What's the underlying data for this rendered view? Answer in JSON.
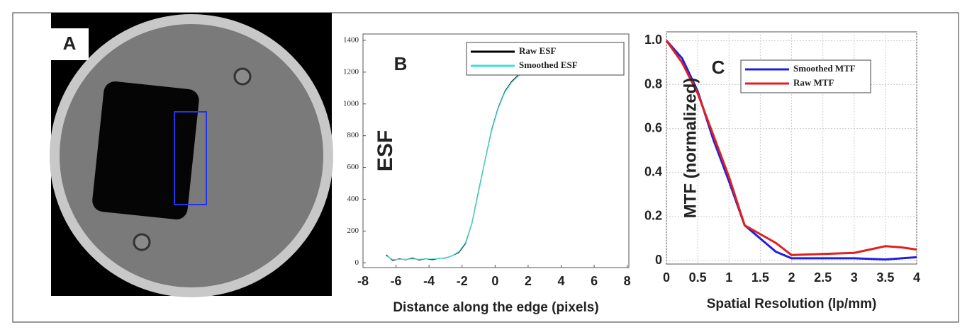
{
  "panel_a": {
    "label": "A"
  },
  "chart_data": [
    {
      "type": "line",
      "panel_label": "B",
      "x_label": "Distance along the edge (pixels)",
      "y_label": "ESF",
      "xlim": [
        -8,
        8.1
      ],
      "ylim": [
        -30,
        1440
      ],
      "xticks": [
        -8,
        -6,
        -4,
        -2,
        0,
        2,
        4,
        6,
        8
      ],
      "yticks": [
        0,
        200,
        400,
        600,
        800,
        1000,
        1200,
        1400
      ],
      "grid": false,
      "legend": "upper right",
      "series": [
        {
          "name": "Raw ESF",
          "color": "#000000",
          "x": [
            -6.6,
            -6.2,
            -5.8,
            -5.4,
            -5,
            -4.6,
            -4.2,
            -3.8,
            -3.4,
            -3,
            -2.6,
            -2.2,
            -1.8,
            -1.4,
            -1,
            -0.6,
            -0.2,
            0.2,
            0.6,
            1,
            1.4,
            1.8
          ],
          "values": [
            50,
            15,
            25,
            20,
            30,
            18,
            25,
            20,
            28,
            30,
            45,
            65,
            120,
            250,
            450,
            650,
            840,
            980,
            1080,
            1140,
            1180,
            1210
          ]
        },
        {
          "name": "Smoothed ESF",
          "color": "#40e0d0",
          "x": [
            -6.6,
            -6.2,
            -5.8,
            -5.4,
            -5,
            -4.6,
            -4.2,
            -3.8,
            -3.4,
            -3,
            -2.6,
            -2.2,
            -1.8,
            -1.4,
            -1,
            -0.6,
            -0.2,
            0.2,
            0.6,
            1,
            1.4,
            1.8
          ],
          "values": [
            45,
            20,
            22,
            22,
            25,
            22,
            24,
            24,
            27,
            32,
            45,
            70,
            125,
            250,
            445,
            650,
            835,
            975,
            1075,
            1135,
            1175,
            1205
          ]
        }
      ]
    },
    {
      "type": "line",
      "panel_label": "C",
      "x_label": "Spatial Resolution (lp/mm)",
      "y_label": "MTF (normalized)",
      "xlim": [
        0,
        4
      ],
      "ylim": [
        -0.016,
        1.04
      ],
      "xticks": [
        0,
        0.5,
        1,
        1.5,
        2,
        2.5,
        3,
        3.5,
        4
      ],
      "yticks": [
        0,
        0.2,
        0.4,
        0.6,
        0.8,
        {
          "value": 1,
          "label": "1.0"
        }
      ],
      "grid": true,
      "legend": "upper center",
      "series": [
        {
          "name": "Smoothed MTF",
          "color": "#1f1fe0",
          "x": [
            0,
            0.25,
            0.5,
            0.75,
            1,
            1.25,
            1.5,
            1.75,
            2,
            2.5,
            3,
            3.5,
            4
          ],
          "values": [
            1.0,
            0.92,
            0.77,
            0.55,
            0.36,
            0.16,
            0.1,
            0.04,
            0.01,
            0.01,
            0.01,
            0.005,
            0.015
          ]
        },
        {
          "name": "Raw MTF",
          "color": "#e02020",
          "x": [
            0,
            0.25,
            0.5,
            0.75,
            1,
            1.25,
            1.5,
            1.75,
            2,
            2.5,
            3,
            3.25,
            3.5,
            3.75,
            4
          ],
          "values": [
            1.0,
            0.9,
            0.76,
            0.57,
            0.38,
            0.16,
            0.12,
            0.08,
            0.025,
            0.03,
            0.035,
            0.05,
            0.065,
            0.06,
            0.05
          ]
        }
      ]
    }
  ]
}
